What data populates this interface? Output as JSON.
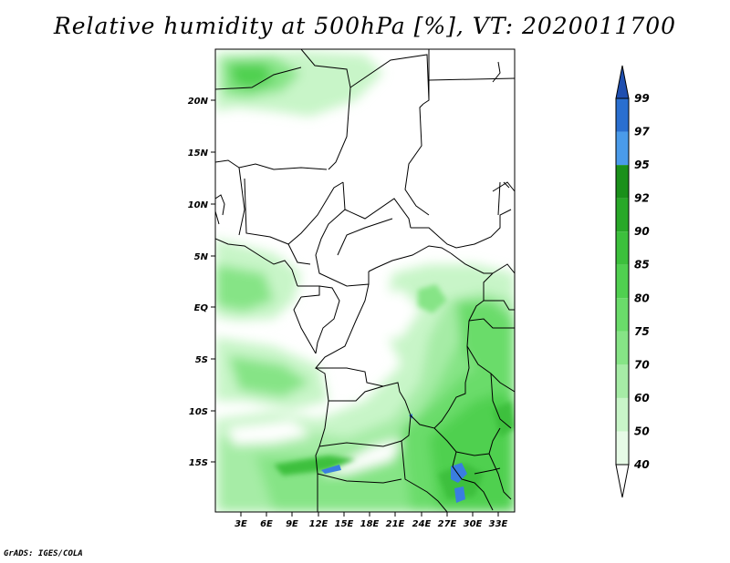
{
  "title": "Relative humidity at 500hPa [%], VT: 2020011700",
  "footer": "GrADS: IGES/COLA",
  "map": {
    "lat_ticks": [
      "20N",
      "15N",
      "10N",
      "5N",
      "EQ",
      "5S",
      "10S",
      "15S"
    ],
    "lon_ticks": [
      "3E",
      "6E",
      "9E",
      "12E",
      "15E",
      "18E",
      "21E",
      "24E",
      "27E",
      "30E",
      "33E"
    ]
  },
  "colorbar": {
    "levels": [
      "40",
      "50",
      "60",
      "70",
      "75",
      "80",
      "85",
      "90",
      "92",
      "95",
      "97",
      "99"
    ],
    "colors": [
      "#ffffff",
      "#e6fae6",
      "#c8f5c8",
      "#a6eca6",
      "#86e486",
      "#6adc6a",
      "#50d050",
      "#3cc03c",
      "#28a828",
      "#1a901a",
      "#4a9bea",
      "#2a6fd0",
      "#1f4fb0"
    ]
  },
  "colors": {
    "land_border": "#000000",
    "humid_low": "#e6fae6",
    "humid_mid": "#86e486",
    "humid_high": "#3cc03c",
    "lake_blue": "#3a7ee0"
  }
}
